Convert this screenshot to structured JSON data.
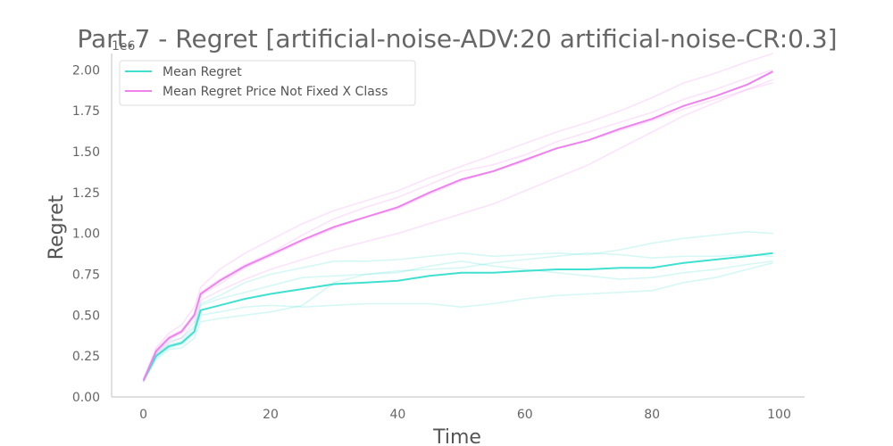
{
  "chart_data": {
    "type": "line",
    "title": "Part.7 - Regret [artificial-noise-ADV:20 artificial-noise-CR:0.3]",
    "xlabel": "Time",
    "ylabel": "Regret",
    "y_offset_text": "1e6",
    "xlim": [
      -5,
      104
    ],
    "ylim": [
      0,
      2.1
    ],
    "x_ticks": [
      "0",
      "20",
      "40",
      "60",
      "80",
      "100"
    ],
    "y_ticks": [
      "0.00",
      "0.25",
      "0.50",
      "0.75",
      "1.00",
      "1.25",
      "1.50",
      "1.75",
      "2.00"
    ],
    "grid": false,
    "legend_position": "upper-left",
    "x": [
      0,
      2,
      4,
      6,
      8,
      9,
      12,
      16,
      20,
      25,
      30,
      35,
      40,
      45,
      50,
      55,
      60,
      65,
      70,
      75,
      80,
      85,
      90,
      95,
      99
    ],
    "series": [
      {
        "name": "Mean Regret",
        "color": "#40e0d0",
        "values": [
          0.1,
          0.25,
          0.31,
          0.33,
          0.4,
          0.53,
          0.56,
          0.6,
          0.63,
          0.66,
          0.69,
          0.7,
          0.71,
          0.74,
          0.76,
          0.76,
          0.77,
          0.78,
          0.78,
          0.79,
          0.79,
          0.82,
          0.84,
          0.86,
          0.88
        ],
        "runs": [
          [
            0.09,
            0.24,
            0.3,
            0.32,
            0.39,
            0.5,
            0.52,
            0.55,
            0.56,
            0.55,
            0.56,
            0.57,
            0.57,
            0.57,
            0.55,
            0.57,
            0.6,
            0.62,
            0.63,
            0.64,
            0.65,
            0.7,
            0.73,
            0.78,
            0.82
          ],
          [
            0.11,
            0.27,
            0.34,
            0.36,
            0.43,
            0.57,
            0.62,
            0.7,
            0.75,
            0.79,
            0.83,
            0.83,
            0.84,
            0.86,
            0.88,
            0.86,
            0.87,
            0.88,
            0.87,
            0.9,
            0.94,
            0.97,
            0.99,
            1.01,
            1.0
          ],
          [
            0.1,
            0.23,
            0.29,
            0.3,
            0.36,
            0.46,
            0.48,
            0.5,
            0.52,
            0.56,
            0.7,
            0.75,
            0.76,
            0.8,
            0.83,
            0.8,
            0.78,
            0.76,
            0.74,
            0.72,
            0.73,
            0.76,
            0.78,
            0.81,
            0.83
          ],
          [
            0.1,
            0.26,
            0.32,
            0.34,
            0.42,
            0.56,
            0.6,
            0.64,
            0.68,
            0.73,
            0.74,
            0.75,
            0.77,
            0.78,
            0.79,
            0.82,
            0.84,
            0.86,
            0.88,
            0.87,
            0.85,
            0.86,
            0.86,
            0.87,
            0.86
          ]
        ]
      },
      {
        "name": "Mean Regret Price Not Fixed X Class",
        "color": "#ee82ee",
        "values": [
          0.1,
          0.28,
          0.36,
          0.4,
          0.5,
          0.63,
          0.71,
          0.8,
          0.87,
          0.96,
          1.04,
          1.1,
          1.16,
          1.25,
          1.33,
          1.38,
          1.45,
          1.52,
          1.57,
          1.64,
          1.7,
          1.78,
          1.84,
          1.91,
          1.99
        ],
        "runs": [
          [
            0.09,
            0.26,
            0.33,
            0.36,
            0.46,
            0.59,
            0.65,
            0.72,
            0.78,
            0.84,
            0.9,
            0.95,
            1.0,
            1.06,
            1.12,
            1.18,
            1.26,
            1.34,
            1.42,
            1.52,
            1.62,
            1.72,
            1.8,
            1.88,
            1.94
          ],
          [
            0.11,
            0.3,
            0.39,
            0.44,
            0.55,
            0.67,
            0.78,
            0.88,
            0.96,
            1.06,
            1.14,
            1.2,
            1.26,
            1.34,
            1.41,
            1.48,
            1.55,
            1.62,
            1.68,
            1.75,
            1.83,
            1.92,
            1.98,
            2.05,
            2.1
          ],
          [
            0.1,
            0.27,
            0.35,
            0.39,
            0.49,
            0.62,
            0.69,
            0.79,
            0.86,
            0.95,
            1.03,
            1.1,
            1.15,
            1.24,
            1.32,
            1.38,
            1.44,
            1.52,
            1.57,
            1.63,
            1.69,
            1.76,
            1.82,
            1.88,
            1.92
          ],
          [
            0.1,
            0.29,
            0.37,
            0.41,
            0.51,
            0.64,
            0.72,
            0.81,
            0.88,
            0.99,
            1.09,
            1.16,
            1.22,
            1.3,
            1.38,
            1.42,
            1.48,
            1.56,
            1.62,
            1.68,
            1.74,
            1.82,
            1.88,
            1.95,
            2.0
          ]
        ]
      }
    ]
  }
}
